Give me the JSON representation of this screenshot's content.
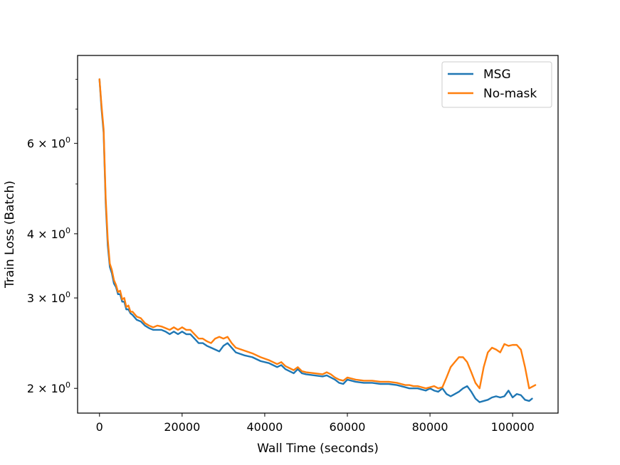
{
  "chart_data": {
    "type": "line",
    "xlabel": "Wall Time (seconds)",
    "ylabel": "Train Loss (Batch)",
    "xscale": "linear",
    "yscale": "log",
    "xlim": [
      -5300,
      111000
    ],
    "ylim": [
      1.79,
      8.9
    ],
    "x_ticks": [
      0,
      20000,
      40000,
      60000,
      80000,
      100000
    ],
    "x_tick_labels": [
      "0",
      "20000",
      "40000",
      "60000",
      "80000",
      "100000"
    ],
    "y_major_ticks": [
      {
        "value": 2,
        "mantissa": "2",
        "exponent": "0"
      },
      {
        "value": 3,
        "mantissa": "3",
        "exponent": "0"
      },
      {
        "value": 4,
        "mantissa": "4",
        "exponent": "0"
      },
      {
        "value": 6,
        "mantissa": "6",
        "exponent": "0"
      }
    ],
    "y_minor_ticks": [
      5,
      7,
      8
    ],
    "grid": false,
    "legend": {
      "position": "top-right"
    },
    "series": [
      {
        "name": "MSG",
        "color": "#1f77b4",
        "x": [
          0,
          500,
          1000,
          1500,
          2000,
          2500,
          3000,
          3500,
          4000,
          4500,
          5000,
          5500,
          6000,
          6500,
          7000,
          7500,
          8000,
          9000,
          10000,
          11000,
          12000,
          13000,
          14000,
          15000,
          16000,
          17000,
          18000,
          19000,
          20000,
          21000,
          22000,
          23000,
          24000,
          25000,
          26000,
          27000,
          28000,
          29000,
          30000,
          31000,
          32000,
          33000,
          35000,
          37000,
          39000,
          41000,
          43000,
          44000,
          45000,
          46000,
          47000,
          48000,
          49000,
          50000,
          52000,
          54000,
          55000,
          56000,
          57000,
          58000,
          59000,
          60000,
          62000,
          64000,
          66000,
          68000,
          70000,
          72000,
          73000,
          74000,
          75000,
          76000,
          77000,
          78000,
          79000,
          80000,
          81000,
          82000,
          83000,
          84000,
          85000,
          86000,
          87000,
          88000,
          89000,
          90000,
          91000,
          92000,
          93000,
          94000,
          95000,
          96000,
          97000,
          98000,
          99000,
          100000,
          101000,
          102000,
          103000,
          104000,
          104700
        ],
        "y": [
          8.0,
          7.0,
          6.3,
          4.6,
          3.8,
          3.45,
          3.35,
          3.2,
          3.15,
          3.05,
          3.05,
          2.95,
          2.95,
          2.85,
          2.85,
          2.8,
          2.78,
          2.72,
          2.7,
          2.65,
          2.62,
          2.6,
          2.6,
          2.6,
          2.58,
          2.55,
          2.58,
          2.55,
          2.58,
          2.55,
          2.55,
          2.5,
          2.45,
          2.45,
          2.42,
          2.4,
          2.38,
          2.36,
          2.42,
          2.45,
          2.4,
          2.35,
          2.32,
          2.3,
          2.26,
          2.24,
          2.2,
          2.22,
          2.18,
          2.16,
          2.14,
          2.18,
          2.14,
          2.13,
          2.12,
          2.11,
          2.12,
          2.1,
          2.08,
          2.05,
          2.04,
          2.08,
          2.06,
          2.05,
          2.05,
          2.04,
          2.04,
          2.03,
          2.02,
          2.01,
          2.0,
          2.0,
          2.0,
          1.99,
          1.98,
          2.0,
          1.98,
          1.97,
          2.0,
          1.95,
          1.93,
          1.95,
          1.97,
          2.0,
          2.02,
          1.97,
          1.91,
          1.88,
          1.89,
          1.9,
          1.92,
          1.93,
          1.92,
          1.93,
          1.98,
          1.92,
          1.95,
          1.94,
          1.9,
          1.89,
          1.91
        ]
      },
      {
        "name": "No-mask",
        "color": "#ff7f0e",
        "x": [
          0,
          500,
          1000,
          1500,
          2000,
          2500,
          3000,
          3500,
          4000,
          4500,
          5000,
          5500,
          6000,
          6500,
          7000,
          7500,
          8000,
          9000,
          10000,
          11000,
          12000,
          13000,
          14000,
          15000,
          16000,
          17000,
          18000,
          19000,
          20000,
          21000,
          22000,
          23000,
          24000,
          25000,
          26000,
          27000,
          28000,
          29000,
          30000,
          31000,
          32000,
          33000,
          35000,
          37000,
          39000,
          41000,
          43000,
          44000,
          45000,
          46000,
          47000,
          48000,
          49000,
          50000,
          52000,
          54000,
          55000,
          56000,
          57000,
          58000,
          59000,
          60000,
          62000,
          64000,
          66000,
          68000,
          70000,
          72000,
          73000,
          74000,
          75000,
          76000,
          77000,
          78000,
          79000,
          80000,
          81000,
          82000,
          83000,
          84000,
          85000,
          86000,
          87000,
          88000,
          89000,
          90000,
          91000,
          92000,
          93000,
          94000,
          95000,
          96000,
          97000,
          98000,
          99000,
          100000,
          101000,
          102000,
          103000,
          104000,
          105500
        ],
        "y": [
          8.0,
          7.1,
          6.4,
          4.7,
          3.9,
          3.5,
          3.4,
          3.25,
          3.18,
          3.08,
          3.1,
          2.98,
          3.0,
          2.88,
          2.9,
          2.82,
          2.82,
          2.76,
          2.74,
          2.68,
          2.65,
          2.63,
          2.65,
          2.64,
          2.62,
          2.6,
          2.63,
          2.6,
          2.63,
          2.6,
          2.6,
          2.55,
          2.5,
          2.5,
          2.47,
          2.45,
          2.5,
          2.52,
          2.5,
          2.52,
          2.45,
          2.4,
          2.37,
          2.34,
          2.3,
          2.27,
          2.23,
          2.25,
          2.21,
          2.19,
          2.17,
          2.2,
          2.16,
          2.15,
          2.14,
          2.13,
          2.15,
          2.13,
          2.1,
          2.08,
          2.07,
          2.1,
          2.08,
          2.07,
          2.07,
          2.06,
          2.06,
          2.05,
          2.04,
          2.03,
          2.03,
          2.02,
          2.02,
          2.01,
          2.0,
          2.01,
          2.02,
          2.0,
          2.01,
          2.1,
          2.2,
          2.25,
          2.3,
          2.3,
          2.25,
          2.15,
          2.05,
          2.0,
          2.2,
          2.35,
          2.4,
          2.38,
          2.35,
          2.44,
          2.42,
          2.43,
          2.43,
          2.38,
          2.2,
          2.0,
          2.03
        ]
      }
    ]
  }
}
